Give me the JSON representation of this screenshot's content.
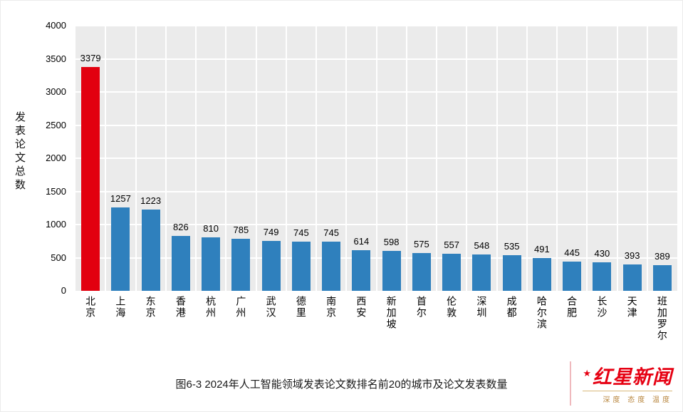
{
  "chart_data": {
    "type": "bar",
    "title": "图6-3 2024年人工智能领域发表论文数排名前20的城市及论文发表数量",
    "xlabel": "",
    "ylabel": "发表论文总数",
    "ylim": [
      0,
      4000
    ],
    "ytick_step": 500,
    "categories": [
      "北京",
      "上海",
      "东京",
      "香港",
      "杭州",
      "广州",
      "武汉",
      "德里",
      "南京",
      "西安",
      "新加坡",
      "首尔",
      "伦敦",
      "深圳",
      "成都",
      "哈尔滨",
      "合肥",
      "长沙",
      "天津",
      "班加罗尔"
    ],
    "values": [
      3379,
      1257,
      1223,
      826,
      810,
      785,
      749,
      745,
      745,
      614,
      598,
      575,
      557,
      548,
      535,
      491,
      445,
      430,
      393,
      389
    ],
    "bar_color": "#2f80bd",
    "highlight_index": 0,
    "highlight_color": "#e2000f",
    "plot_bg": "#ebebeb",
    "grid_color": "#ffffff",
    "grid": true,
    "legend": false,
    "legend_position": "none"
  },
  "caption": "图6-3 2024年人工智能领域发表论文数排名前20的城市及论文发表数量",
  "logo": {
    "name": "红星新闻",
    "tagline": "深度 态度 温度",
    "color": "#e60012"
  }
}
